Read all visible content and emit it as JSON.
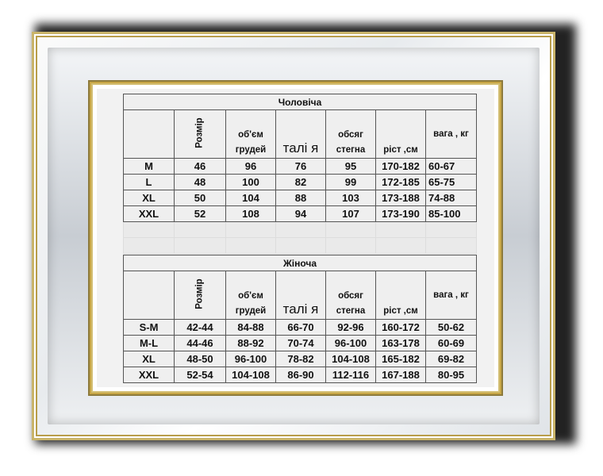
{
  "men": {
    "title": "Чоловіча",
    "headers": [
      "",
      "Розмір",
      "об'єм грудей",
      "талі я",
      "обсяг стегна",
      "ріст ,см",
      "вага , кг"
    ],
    "rows": [
      [
        "M",
        "46",
        "96",
        "76",
        "95",
        "170-182",
        "60-67"
      ],
      [
        "L",
        "48",
        "100",
        "82",
        "99",
        "172-185",
        "65-75"
      ],
      [
        "XL",
        "50",
        "104",
        "88",
        "103",
        "173-188",
        "74-88"
      ],
      [
        "XXL",
        "52",
        "108",
        "94",
        "107",
        "173-190",
        "85-100"
      ]
    ]
  },
  "women": {
    "title": "Жіноча",
    "headers": [
      "",
      "Розмір",
      "об'єм грудей",
      "талі я",
      "обсяг стегна",
      "ріст ,см",
      "вага , кг"
    ],
    "rows": [
      [
        "S-M",
        "42-44",
        "84-88",
        "66-70",
        "92-96",
        "160-172",
        "50-62"
      ],
      [
        "M-L",
        "44-46",
        "88-92",
        "70-74",
        "96-100",
        "163-178",
        "60-69"
      ],
      [
        "XL",
        "48-50",
        "96-100",
        "78-82",
        "104-108",
        "165-182",
        "69-82"
      ],
      [
        "XXL",
        "52-54",
        "104-108",
        "86-90",
        "112-116",
        "167-188",
        "80-95"
      ]
    ]
  }
}
